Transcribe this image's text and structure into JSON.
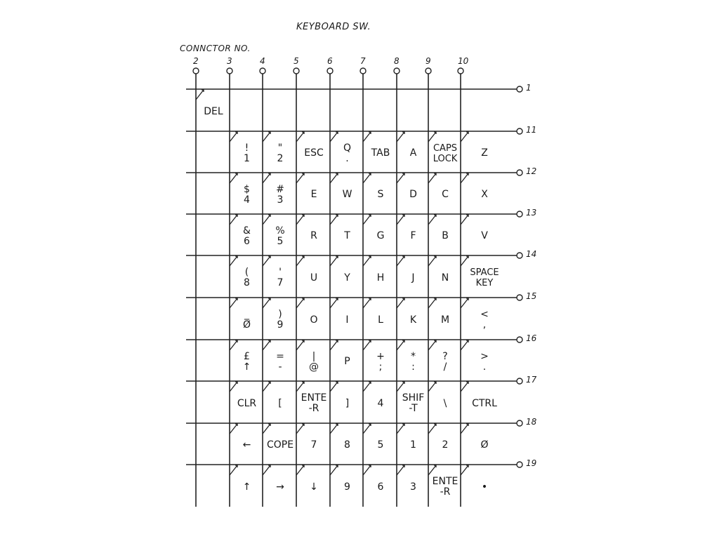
{
  "title": "KEYBOARD SW.",
  "connector_label": "CONNCTOR NO.",
  "column_numbers": [
    "2",
    "3",
    "4",
    "5",
    "6",
    "7",
    "8",
    "9",
    "10"
  ],
  "row_numbers": [
    "1",
    "11",
    "12",
    "13",
    "14",
    "15",
    "16",
    "17",
    "18",
    "19"
  ],
  "keys": [
    [
      "DEL",
      "",
      "",
      "",
      "",
      "",
      "",
      "",
      ""
    ],
    [
      "",
      "!\n1",
      "\"\n2",
      "ESC",
      "Q\n.",
      "TAB",
      "A",
      "CAPS\nLOCK",
      "Z"
    ],
    [
      "",
      "$\n4",
      "#\n3",
      "E",
      "W",
      "S",
      "D",
      "C",
      "X"
    ],
    [
      "",
      "&\n6",
      "%\n5",
      "R",
      "T",
      "G",
      "F",
      "B",
      "V"
    ],
    [
      "",
      "(\n8",
      "'\n7",
      "U",
      "Y",
      "H",
      "J",
      "N",
      "SPACE\nKEY"
    ],
    [
      "",
      "_\nØ",
      ")\n9",
      "O",
      "I",
      "L",
      "K",
      "M",
      "<\n,"
    ],
    [
      "",
      "£\n↑",
      "=\n-",
      "|\n@",
      "P",
      "+\n;",
      "*\n:",
      "?\n/",
      ">\n."
    ],
    [
      "",
      "CLR",
      "[",
      "ENTE\n-R",
      "]",
      "4",
      "SHIF\n-T",
      "\\",
      "CTRL"
    ],
    [
      "",
      "←",
      "COPE",
      "7",
      "8",
      "5",
      "1",
      "2",
      "Ø"
    ],
    [
      "",
      "↑",
      "→",
      "↓",
      "9",
      "6",
      "3",
      "ENTE\n-R",
      "•"
    ]
  ]
}
